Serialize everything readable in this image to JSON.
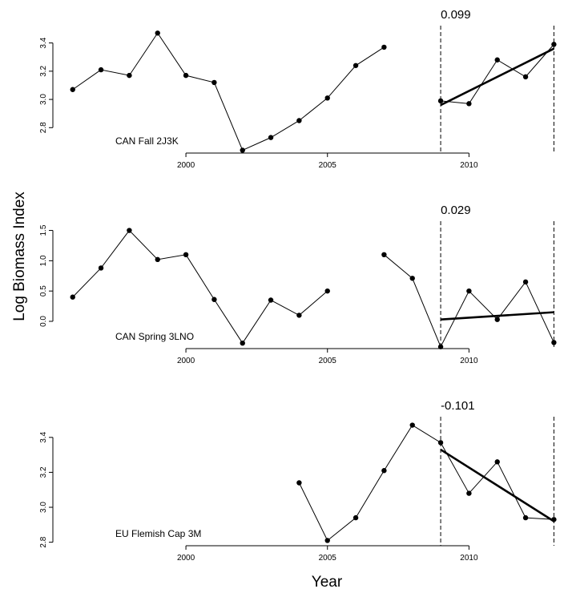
{
  "figure": {
    "ylabel": "Log Biomass Index",
    "xlabel": "Year"
  },
  "chart_data": [
    {
      "type": "line",
      "panel_label": "CAN Fall 2J3K",
      "slope_label": "0.099",
      "xlim": [
        1995.3,
        2013.3
      ],
      "ylim": [
        2.62,
        3.5
      ],
      "xticks": [
        2000,
        2005,
        2010
      ],
      "xtick_labels": [
        "2000",
        "2005",
        "2010"
      ],
      "yticks": [
        2.8,
        3.0,
        3.2,
        3.4
      ],
      "ytick_labels": [
        "2.8",
        "3.0",
        "3.2",
        "3.4"
      ],
      "vlines": [
        2009,
        2013
      ],
      "points": [
        {
          "x": 1996,
          "y": 3.07
        },
        {
          "x": 1997,
          "y": 3.21
        },
        {
          "x": 1998,
          "y": 3.17
        },
        {
          "x": 1999,
          "y": 3.47
        },
        {
          "x": 2000,
          "y": 3.17
        },
        {
          "x": 2001,
          "y": 3.12
        },
        {
          "x": 2002,
          "y": 2.64
        },
        {
          "x": 2003,
          "y": 2.73
        },
        {
          "x": 2004,
          "y": 2.85
        },
        {
          "x": 2005,
          "y": 3.01
        },
        {
          "x": 2006,
          "y": 3.24
        },
        {
          "x": 2007,
          "y": 3.37
        },
        {
          "x": 2009,
          "y": 2.99
        },
        {
          "x": 2010,
          "y": 2.97
        },
        {
          "x": 2011,
          "y": 3.28
        },
        {
          "x": 2012,
          "y": 3.16
        },
        {
          "x": 2013,
          "y": 3.39
        }
      ],
      "segments": [
        [
          1996,
          2007
        ],
        [
          2009,
          2013
        ]
      ],
      "trend": {
        "x": [
          2009,
          2013
        ],
        "y": [
          2.96,
          3.36
        ]
      }
    },
    {
      "type": "line",
      "panel_label": "CAN Spring 3LNO",
      "slope_label": "0.029",
      "xlim": [
        1995.3,
        2013.3
      ],
      "ylim": [
        -0.45,
        1.6
      ],
      "xticks": [
        2000,
        2005,
        2010
      ],
      "xtick_labels": [
        "2000",
        "2005",
        "2010"
      ],
      "yticks": [
        0.0,
        0.5,
        1.0,
        1.5
      ],
      "ytick_labels": [
        "0.0",
        "0.5",
        "1.0",
        "1.5"
      ],
      "vlines": [
        2009,
        2013
      ],
      "points": [
        {
          "x": 1996,
          "y": 0.4
        },
        {
          "x": 1997,
          "y": 0.88
        },
        {
          "x": 1998,
          "y": 1.5
        },
        {
          "x": 1999,
          "y": 1.02
        },
        {
          "x": 2000,
          "y": 1.1
        },
        {
          "x": 2001,
          "y": 0.36
        },
        {
          "x": 2002,
          "y": -0.36
        },
        {
          "x": 2003,
          "y": 0.35
        },
        {
          "x": 2004,
          "y": 0.1
        },
        {
          "x": 2005,
          "y": 0.5
        },
        {
          "x": 2007,
          "y": 1.1
        },
        {
          "x": 2008,
          "y": 0.71
        },
        {
          "x": 2009,
          "y": -0.42
        },
        {
          "x": 2010,
          "y": 0.5
        },
        {
          "x": 2011,
          "y": 0.03
        },
        {
          "x": 2012,
          "y": 0.65
        },
        {
          "x": 2013,
          "y": -0.35
        }
      ],
      "segments": [
        [
          1996,
          2005
        ],
        [
          2007,
          2013
        ]
      ],
      "trend": {
        "x": [
          2009,
          2013
        ],
        "y": [
          0.03,
          0.15
        ]
      }
    },
    {
      "type": "line",
      "panel_label": "EU Flemish Cap 3M",
      "slope_label": "-0.101",
      "xlim": [
        1995.3,
        2013.3
      ],
      "ylim": [
        2.78,
        3.5
      ],
      "xticks": [
        2000,
        2005,
        2010
      ],
      "xtick_labels": [
        "2000",
        "2005",
        "2010"
      ],
      "yticks": [
        2.8,
        3.0,
        3.2,
        3.4
      ],
      "ytick_labels": [
        "2.8",
        "3.0",
        "3.2",
        "3.4"
      ],
      "vlines": [
        2009,
        2013
      ],
      "points": [
        {
          "x": 2004,
          "y": 3.14
        },
        {
          "x": 2005,
          "y": 2.81
        },
        {
          "x": 2006,
          "y": 2.94
        },
        {
          "x": 2007,
          "y": 3.21
        },
        {
          "x": 2008,
          "y": 3.47
        },
        {
          "x": 2009,
          "y": 3.37
        },
        {
          "x": 2010,
          "y": 3.08
        },
        {
          "x": 2011,
          "y": 3.26
        },
        {
          "x": 2012,
          "y": 2.94
        },
        {
          "x": 2013,
          "y": 2.93
        }
      ],
      "segments": [
        [
          2004,
          2013
        ]
      ],
      "trend": {
        "x": [
          2009,
          2013
        ],
        "y": [
          3.33,
          2.92
        ]
      }
    }
  ]
}
